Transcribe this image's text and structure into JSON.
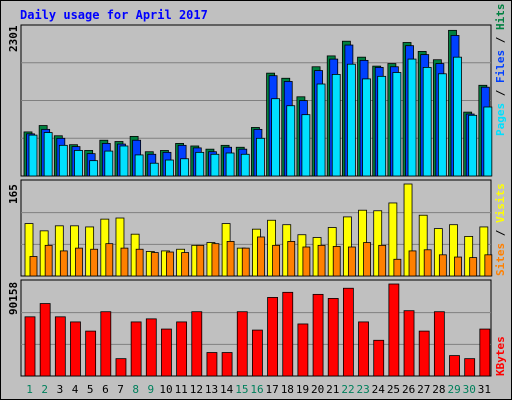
{
  "colors": {
    "background": "#c0c0c0",
    "title": "#0000ff",
    "gridline": "#808080",
    "hits": "#008040",
    "files": "#0040ff",
    "pages": "#00e0ff",
    "visits": "#ffff00",
    "sites": "#ff8000",
    "kbytes": "#ff0000",
    "weekday_label": "#000000",
    "weekend_label": "#00805c"
  },
  "chart_data": [
    {
      "type": "bar",
      "title": "Daily usage for April 2017",
      "categories": [
        "1",
        "2",
        "3",
        "4",
        "5",
        "6",
        "7",
        "8",
        "9",
        "10",
        "11",
        "12",
        "13",
        "14",
        "15",
        "16",
        "17",
        "18",
        "19",
        "20",
        "21",
        "22",
        "23",
        "24",
        "25",
        "26",
        "27",
        "28",
        "29",
        "30",
        "31"
      ],
      "weekend_days": [
        "1",
        "2",
        "8",
        "9",
        "15",
        "16",
        "22",
        "23",
        "29",
        "30"
      ],
      "ymax_label": "2301",
      "ylim": [
        0,
        2301
      ],
      "legend_parts": [
        "Pages",
        "Files",
        "Hits"
      ],
      "series": [
        {
          "name": "Hits",
          "values": [
            690,
            790,
            630,
            490,
            400,
            560,
            540,
            620,
            380,
            400,
            510,
            470,
            420,
            480,
            450,
            760,
            1610,
            1530,
            1240,
            1710,
            1880,
            2110,
            1860,
            1720,
            1760,
            2090,
            1950,
            1820,
            2280,
            1000,
            1420
          ]
        },
        {
          "name": "Files",
          "values": [
            660,
            730,
            590,
            460,
            350,
            510,
            500,
            560,
            340,
            370,
            480,
            440,
            380,
            450,
            420,
            730,
            1570,
            1480,
            1180,
            1650,
            1830,
            2050,
            1810,
            1700,
            1710,
            2040,
            1900,
            1760,
            2200,
            970,
            1390
          ]
        },
        {
          "name": "Pages",
          "values": [
            640,
            680,
            480,
            400,
            240,
            390,
            470,
            330,
            200,
            250,
            270,
            370,
            340,
            360,
            340,
            590,
            1210,
            1100,
            960,
            1440,
            1590,
            1750,
            1520,
            1560,
            1620,
            1830,
            1700,
            1600,
            1860,
            950,
            1080
          ]
        }
      ]
    },
    {
      "type": "bar",
      "categories": [
        "1",
        "2",
        "3",
        "4",
        "5",
        "6",
        "7",
        "8",
        "9",
        "10",
        "11",
        "12",
        "13",
        "14",
        "15",
        "16",
        "17",
        "18",
        "19",
        "20",
        "21",
        "22",
        "23",
        "24",
        "25",
        "26",
        "27",
        "28",
        "29",
        "30",
        "31"
      ],
      "ymax_label": "165",
      "ylim": [
        0,
        165
      ],
      "legend_parts": [
        "Sites",
        "Visits"
      ],
      "series": [
        {
          "name": "Visits",
          "values": [
            94,
            81,
            90,
            90,
            88,
            102,
            104,
            75,
            44,
            45,
            48,
            55,
            60,
            94,
            50,
            84,
            100,
            92,
            74,
            69,
            87,
            106,
            118,
            117,
            131,
            165,
            109,
            85,
            92,
            71,
            88
          ]
        },
        {
          "name": "Sites",
          "values": [
            35,
            55,
            45,
            50,
            48,
            58,
            50,
            48,
            42,
            43,
            42,
            55,
            58,
            62,
            50,
            70,
            55,
            62,
            52,
            55,
            53,
            52,
            60,
            55,
            30,
            45,
            47,
            38,
            34,
            33,
            38
          ]
        }
      ]
    },
    {
      "type": "bar",
      "categories": [
        "1",
        "2",
        "3",
        "4",
        "5",
        "6",
        "7",
        "8",
        "9",
        "10",
        "11",
        "12",
        "13",
        "14",
        "15",
        "16",
        "17",
        "18",
        "19",
        "20",
        "21",
        "22",
        "23",
        "24",
        "25",
        "26",
        "27",
        "28",
        "29",
        "30",
        "31"
      ],
      "ymax_label": "90158",
      "ylim": [
        0,
        90158
      ],
      "legend_parts": [
        "KBytes"
      ],
      "series": [
        {
          "name": "KBytes",
          "values": [
            58000,
            71000,
            58000,
            53000,
            44000,
            63000,
            17000,
            53000,
            56000,
            46000,
            53000,
            63000,
            23000,
            23000,
            63000,
            45000,
            77000,
            82000,
            51000,
            80000,
            76000,
            86000,
            53000,
            35000,
            90158,
            64000,
            44000,
            63000,
            20000,
            17000,
            46000
          ]
        }
      ]
    }
  ]
}
